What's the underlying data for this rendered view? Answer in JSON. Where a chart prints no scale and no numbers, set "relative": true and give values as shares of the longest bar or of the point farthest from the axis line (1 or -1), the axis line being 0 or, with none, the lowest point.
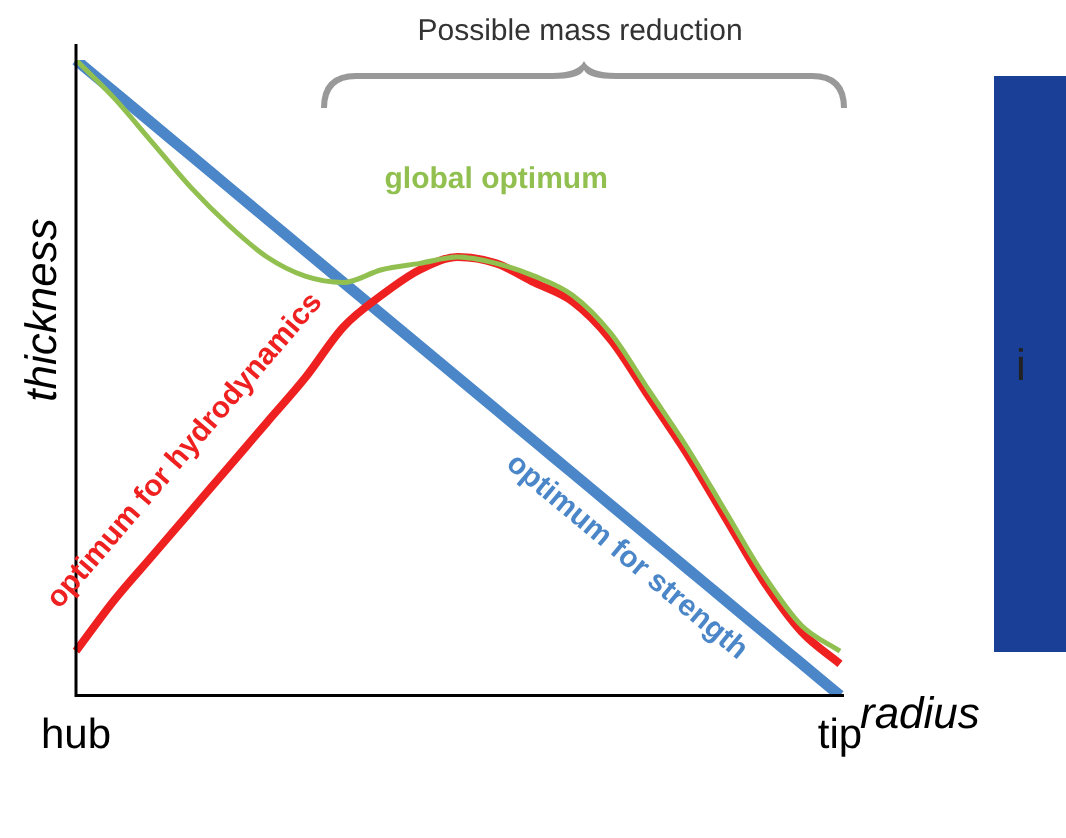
{
  "chart_data": {
    "type": "line",
    "relative": true,
    "xlabel": "radius",
    "ylabel": "thickness",
    "annotations": [
      "Possible mass reduction",
      "i"
    ],
    "categories": [
      "hub",
      null,
      null,
      null,
      null,
      null,
      null,
      null,
      null,
      null,
      null,
      null,
      null,
      null,
      null,
      null,
      null,
      null,
      null,
      null,
      "tip"
    ],
    "series": [
      {
        "name": "global optimum",
        "color": "#92c050",
        "values": [
          1,
          0.94,
          0.87,
          0.8,
          0.74,
          0.69,
          0.66,
          0.65,
          0.67,
          0.68,
          0.69,
          0.68,
          0.66,
          0.63,
          0.57,
          0.48,
          0.39,
          0.29,
          0.19,
          0.11,
          0.07
        ]
      },
      {
        "name": "optimum for hydrodynamics",
        "color": "#ee2020",
        "values": [
          0.07,
          0.15,
          0.22,
          0.29,
          0.36,
          0.43,
          0.5,
          0.58,
          0.63,
          0.67,
          0.69,
          0.68,
          0.65,
          0.62,
          0.56,
          0.47,
          0.38,
          0.28,
          0.18,
          0.1,
          0.05
        ]
      },
      {
        "name": "optimum for strength",
        "color": "#4a86c8",
        "values": [
          1,
          0.95,
          0.9,
          0.85,
          0.8,
          0.75,
          0.7,
          0.65,
          0.6,
          0.55,
          0.5,
          0.45,
          0.4,
          0.35,
          0.3,
          0.25,
          0.2,
          0.15,
          0.1,
          0.05,
          0
        ]
      }
    ],
    "legend": false,
    "grid": false,
    "marker": "none",
    "line_style": "solid"
  }
}
